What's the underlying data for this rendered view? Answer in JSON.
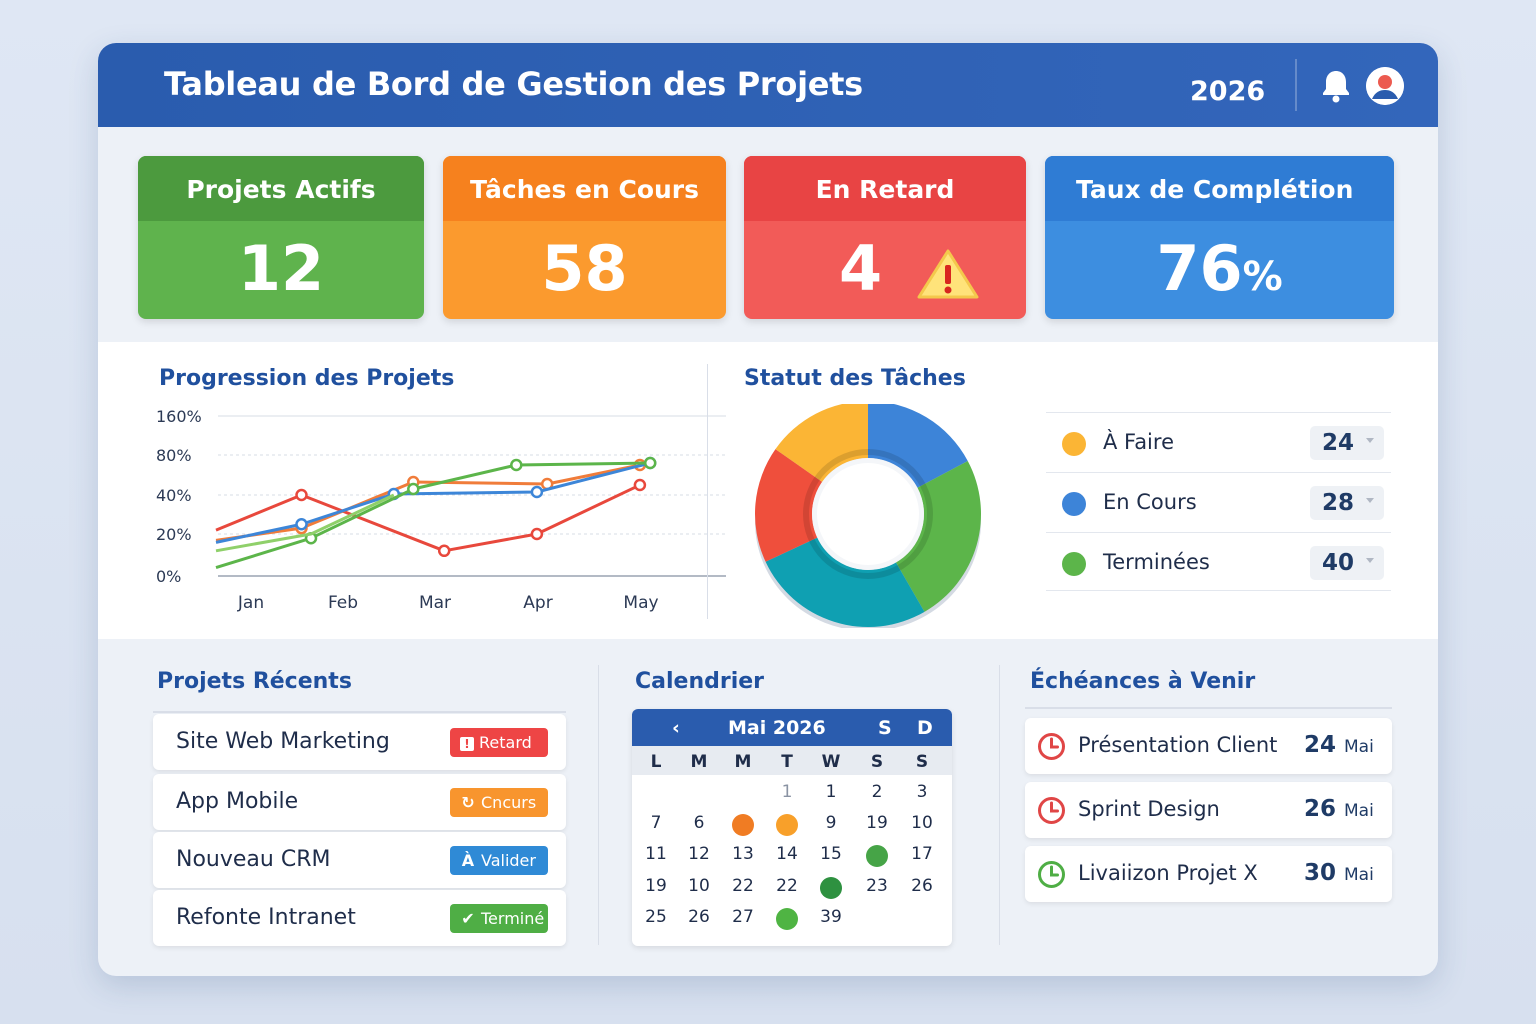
{
  "header": {
    "title": "Tableau de Bord de Gestion des Projets",
    "year": "2026",
    "icons": [
      "bell-icon",
      "user-avatar-icon"
    ]
  },
  "kpis": [
    {
      "label": "Projets Actifs",
      "value": "12",
      "color": "#5fb34d"
    },
    {
      "label": "Tâches en Cours",
      "value": "58",
      "color": "#fb9a2e"
    },
    {
      "label": "En Retard",
      "value": "4",
      "color": "#f25b58",
      "icon": "warning-icon"
    },
    {
      "label": "Taux de Complétion",
      "value": "76",
      "unit": "%",
      "color": "#3d8ee0"
    }
  ],
  "progress_chart": {
    "title": "Progression des Projets"
  },
  "chart_data": [
    {
      "type": "line",
      "title": "Progression des Projets",
      "yticks": [
        "160%",
        "80%",
        "40%",
        "20%",
        "0%"
      ],
      "x": [
        "Jan",
        "Feb",
        "Mar",
        "Apr",
        "May"
      ],
      "series": [
        {
          "color": "#e8483c",
          "points": [
            [
              0,
              22
            ],
            [
              0.9,
              40
            ],
            [
              2.4,
              12
            ],
            [
              3.3,
              20
            ],
            [
              4.3,
              50
            ]
          ]
        },
        {
          "color": "#f07c3a",
          "points": [
            [
              0,
              17
            ],
            [
              0.9,
              23
            ],
            [
              2.1,
              53
            ],
            [
              3.4,
              51
            ],
            [
              4.3,
              70
            ]
          ]
        },
        {
          "color": "#3d86d8",
          "points": [
            [
              0,
              16
            ],
            [
              0.9,
              25
            ],
            [
              1.9,
              41
            ],
            [
              3.3,
              43
            ],
            [
              4.4,
              72
            ]
          ]
        },
        {
          "color": "#5cb54a",
          "points": [
            [
              0,
              4
            ],
            [
              1.0,
              18
            ],
            [
              2.1,
              46
            ],
            [
              3.1,
              70
            ],
            [
              4.4,
              72
            ]
          ]
        },
        {
          "color": "#8fd06a",
          "points": [
            [
              0,
              12
            ],
            [
              1.0,
              20
            ],
            [
              1.9,
              40
            ]
          ]
        }
      ],
      "ylim": [
        0,
        160
      ]
    },
    {
      "type": "pie",
      "title": "Statut des Tâches",
      "categories": [
        "À Faire",
        "En Cours",
        "Terminées"
      ],
      "values": [
        24,
        28,
        40
      ],
      "colors": [
        "#fbb535",
        "#3d84d8",
        "#5cb54a"
      ]
    }
  ],
  "status": {
    "title": "Statut des Tâches",
    "items": [
      {
        "label": "À Faire",
        "count": "24",
        "color": "#fbb535"
      },
      {
        "label": "En Cours",
        "count": "28",
        "color": "#3d84d8"
      },
      {
        "label": "Terminées",
        "count": "40",
        "color": "#5cb54a"
      }
    ]
  },
  "recent": {
    "title": "Projets Récents",
    "items": [
      {
        "name": "Site Web Marketing",
        "badge": "Retard",
        "badge_icon": "!",
        "color": "#ee4545"
      },
      {
        "name": "App Mobile",
        "badge": "Cncurs",
        "badge_icon": "↻",
        "color": "#f8952e"
      },
      {
        "name": "Nouveau CRM",
        "badge": "Valider",
        "badge_icon": "À",
        "color": "#2f8ad6"
      },
      {
        "name": "Refonte Intranet",
        "badge": "Terminé",
        "badge_icon": "✔",
        "color": "#4fae45"
      }
    ]
  },
  "calendar": {
    "title": "Calendrier",
    "month": "Mai 2026",
    "prev": "‹",
    "next": "S",
    "extra": "D",
    "dows": [
      "L",
      "M",
      "M",
      "T",
      "W",
      "S",
      "S"
    ],
    "weeks": [
      [
        "",
        "",
        "",
        "1",
        "1",
        "2",
        "3"
      ],
      [
        "7",
        "6",
        "",
        "",
        "9",
        "19",
        "10"
      ],
      [
        "11",
        "12",
        "13",
        "14",
        "15",
        "",
        "17"
      ],
      [
        "19",
        "10",
        "22",
        "22",
        "",
        "23",
        "26"
      ],
      [
        "25",
        "26",
        "27",
        "",
        "39",
        "",
        ""
      ]
    ],
    "marks": [
      {
        "week": 1,
        "day": 2,
        "color": "#f07c23"
      },
      {
        "week": 1,
        "day": 3,
        "color": "#f8a02a"
      },
      {
        "week": 2,
        "day": 5,
        "color": "#46a447"
      },
      {
        "week": 3,
        "day": 4,
        "color": "#2e9140"
      },
      {
        "week": 4,
        "day": 3,
        "color": "#4fb443"
      }
    ]
  },
  "deadlines": {
    "title": "Échéances à Venir",
    "items": [
      {
        "name": "Présentation Client",
        "day": "24",
        "month": "Mai",
        "color": "#e04646"
      },
      {
        "name": "Sprint Design",
        "day": "26",
        "month": "Mai",
        "color": "#e04646"
      },
      {
        "name": "Livaiizon Projet X",
        "day": "30",
        "month": "Mai",
        "color": "#4fae45"
      }
    ]
  }
}
